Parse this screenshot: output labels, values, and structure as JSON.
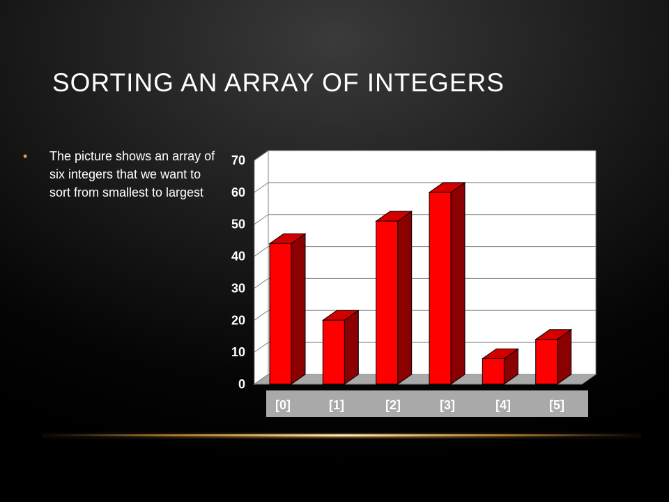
{
  "slide": {
    "title": "Sorting an Array of Integers",
    "bullet": "The picture shows an array of six integers that we want to sort from smallest to largest"
  },
  "chart_data": {
    "type": "bar",
    "categories": [
      "[0]",
      "[1]",
      "[2]",
      "[3]",
      "[4]",
      "[5]"
    ],
    "values": [
      44,
      20,
      51,
      60,
      8,
      14
    ],
    "ylim": [
      0,
      70
    ],
    "yticks": [
      0,
      10,
      20,
      30,
      40,
      50,
      60,
      70
    ],
    "grid": true,
    "bar_color": "#ff0000",
    "bar_side_color": "#8b0000",
    "bar_top_color": "#d40000",
    "wall_color": "#ffffff",
    "floor_color": "#a9a9a9",
    "category_band_color": "#a9a9a9"
  }
}
